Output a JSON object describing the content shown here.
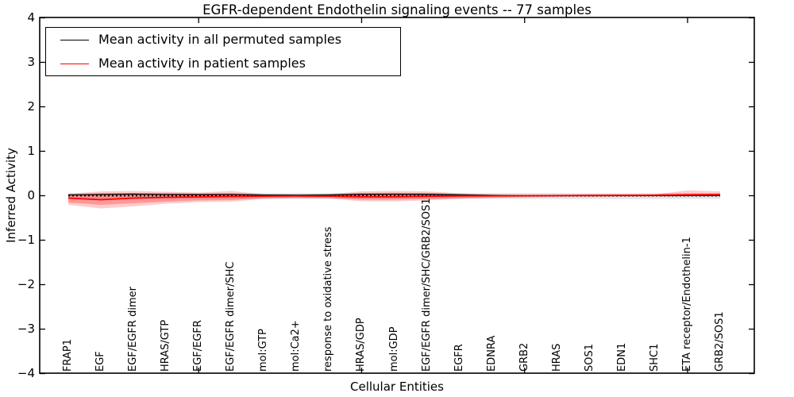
{
  "title": "EGFR-dependent Endothelin signaling events -- 77 samples",
  "axes": {
    "ylabel": "Inferred Activity",
    "xlabel": "Cellular Entities",
    "ytick_labels": [
      "4",
      "3",
      "2",
      "1",
      "0",
      "−1",
      "−2",
      "−3",
      "−4"
    ],
    "ytick_values": [
      4,
      3,
      2,
      1,
      0,
      -1,
      -2,
      -3,
      -4
    ]
  },
  "legend": {
    "items": [
      {
        "label": "Mean activity in all permuted samples",
        "color": "#000000"
      },
      {
        "label": "Mean activity in patient samples",
        "color": "#ff0000"
      }
    ]
  },
  "colors": {
    "patient_line": "#ff0000",
    "permuted_line": "#000000",
    "patient_band": "rgba(255,0,0,0.20)",
    "patient_band_inner": "rgba(255,0,0,0.25)",
    "permuted_band": "rgba(0,0,0,0.10)",
    "frame": "#000000"
  },
  "chart_data": {
    "type": "line",
    "title": "EGFR-dependent Endothelin signaling events -- 77 samples",
    "xlabel": "Cellular Entities",
    "ylabel": "Inferred Activity",
    "ylim": [
      -4,
      4
    ],
    "grid": false,
    "legend_position": "upper left",
    "zero_reference_line": {
      "style": "dotted",
      "color": "#000000",
      "y": 0
    },
    "x_major_tick_indices": [
      4,
      9,
      14,
      19
    ],
    "categories": [
      "FRAP1",
      "EGF",
      "EGF/EGFR dimer",
      "HRAS/GTP",
      "EGF/EGFR",
      "EGF/EGFR dimer/SHC",
      "mol:GTP",
      "mol:Ca2+",
      "response to oxidative stress",
      "HRAS/GDP",
      "mol:GDP",
      "EGF/EGFR dimer/SHC/GRB2/SOS1",
      "EGFR",
      "EDNRA",
      "GRB2",
      "HRAS",
      "SOS1",
      "EDN1",
      "SHC1",
      "ETA receptor/Endothelin-1",
      "GRB2/SOS1"
    ],
    "series": [
      {
        "name": "Mean activity in all permuted samples",
        "color": "#000000",
        "values": [
          0.018,
          0.027,
          0.036,
          0.027,
          0.023,
          0.027,
          0.016,
          0.013,
          0.018,
          0.03,
          0.034,
          0.03,
          0.02,
          0.009,
          0.004,
          0.002,
          0.002,
          0.002,
          0.002,
          0.002,
          0.004
        ]
      },
      {
        "name": "Mean activity in patient samples",
        "color": "#ff0000",
        "values": [
          -0.054,
          -0.089,
          -0.054,
          -0.036,
          -0.027,
          -0.018,
          -0.009,
          -0.005,
          -0.009,
          -0.023,
          -0.023,
          -0.013,
          -0.005,
          -0.002,
          0.002,
          0.005,
          0.009,
          0.011,
          0.014,
          0.021,
          0.027
        ]
      }
    ],
    "bands": [
      {
        "name": "permuted-samples-range",
        "color": "rgba(0,0,0,0.10)",
        "upper": [
          0.06,
          0.06,
          0.06,
          0.06,
          0.06,
          0.06,
          0.06,
          0.06,
          0.06,
          0.06,
          0.06,
          0.06,
          0.06,
          0.06,
          0.06,
          0.06,
          0.06,
          0.06,
          0.06,
          0.06,
          0.06
        ],
        "lower": [
          -0.073,
          -0.073,
          -0.073,
          -0.073,
          -0.073,
          -0.073,
          -0.073,
          -0.073,
          -0.073,
          -0.073,
          -0.073,
          -0.073,
          -0.073,
          -0.073,
          -0.073,
          -0.073,
          -0.073,
          -0.073,
          -0.073,
          -0.073,
          -0.073
        ]
      },
      {
        "name": "patient-samples-range-outer",
        "color": "rgba(255,0,0,0.20)",
        "upper": [
          0.045,
          0.098,
          0.107,
          0.089,
          0.071,
          0.107,
          0.036,
          0.03,
          0.036,
          0.098,
          0.107,
          0.098,
          0.054,
          0.03,
          0.021,
          0.02,
          0.021,
          0.023,
          0.03,
          0.12,
          0.098
        ],
        "lower": [
          -0.205,
          -0.286,
          -0.241,
          -0.179,
          -0.143,
          -0.134,
          -0.071,
          -0.059,
          -0.063,
          -0.125,
          -0.125,
          -0.107,
          -0.071,
          -0.05,
          -0.038,
          -0.03,
          -0.027,
          -0.023,
          -0.02,
          -0.016,
          -0.013
        ]
      },
      {
        "name": "patient-samples-range-inner",
        "color": "rgba(255,0,0,0.25)",
        "upper": [
          0.018,
          0.054,
          0.063,
          0.054,
          0.045,
          0.054,
          0.023,
          0.02,
          0.023,
          0.063,
          0.066,
          0.063,
          0.036,
          0.021,
          0.014,
          0.013,
          0.014,
          0.016,
          0.021,
          0.04,
          0.045
        ],
        "lower": [
          -0.152,
          -0.205,
          -0.17,
          -0.134,
          -0.107,
          -0.098,
          -0.05,
          -0.041,
          -0.045,
          -0.089,
          -0.089,
          -0.077,
          -0.048,
          -0.036,
          -0.027,
          -0.02,
          -0.016,
          -0.013,
          -0.009,
          -0.007,
          -0.005
        ]
      }
    ]
  }
}
